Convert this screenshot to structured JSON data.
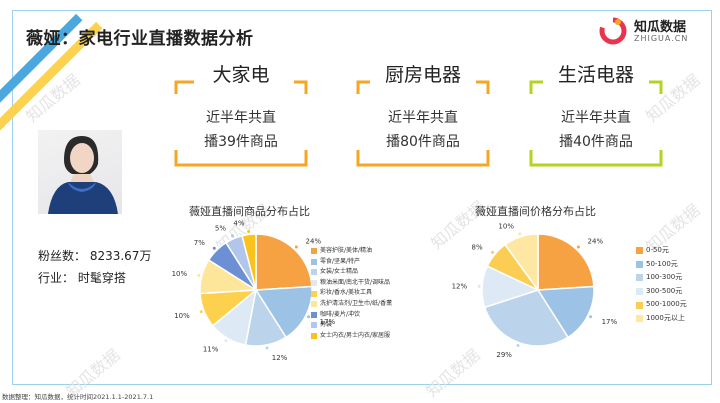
{
  "title": "薇娅：家电行业直播数据分析",
  "logo": {
    "name": "知瓜数据",
    "sub": "ZHIGUA.CN"
  },
  "categories": [
    {
      "name": "大家电",
      "desc_line1": "近半年共直",
      "desc_line2": "播39件商品"
    },
    {
      "name": "厨房电器",
      "desc_line1": "近半年共直",
      "desc_line2": "播80件商品"
    },
    {
      "name": "生活电器",
      "desc_line1": "近半年共直",
      "desc_line2": "播40件商品"
    }
  ],
  "profile": {
    "fans": "粉丝数：  8233.67万",
    "industry": "行业：  时髦穿搭"
  },
  "footer": "数据整理：知瓜数据，统计时间2021.1.1-2021.7.1",
  "watermark": "知瓜数据",
  "colors": {
    "accent": "#f5a623",
    "frame": "#9fd0ea"
  },
  "chart_data": [
    {
      "type": "pie",
      "title": "薇娅直播间商品分布占比",
      "labels": [
        "美容护肤/美体/精油",
        "零食/坚果/特产",
        "女装/女士精品",
        "粮油米面/南北干货/调味品",
        "彩妆/香水/美妆工具",
        "洗护清洁剂/卫生巾/纸/香薰",
        "咖啡/麦片/冲饮",
        "男装",
        "女士内衣/男士内衣/家居服"
      ],
      "values": [
        24,
        17,
        12,
        11,
        10,
        10,
        7,
        5,
        4
      ],
      "value_labels": [
        "24%",
        "17%",
        "12%",
        "11%",
        "10%",
        "10%",
        "7%",
        "5%",
        "4%"
      ],
      "colors": [
        "#f6a243",
        "#9cc2e5",
        "#bcd3ec",
        "#dde9f5",
        "#fdd14d",
        "#fde59a",
        "#6d8fd4",
        "#b1c6ea",
        "#f9c21d"
      ]
    },
    {
      "type": "pie",
      "title": "薇娅直播间价格分布占比",
      "labels": [
        "0-50元",
        "50-100元",
        "100-300元",
        "300-500元",
        "500-1000元",
        "1000元以上"
      ],
      "values": [
        24,
        17,
        29,
        12,
        8,
        10
      ],
      "value_labels": [
        "24%",
        "17%",
        "29%",
        "12%",
        "8%",
        "10%"
      ],
      "colors": [
        "#f6a243",
        "#9cc2e5",
        "#bcd3ec",
        "#dde9f5",
        "#fbcd52",
        "#fde7a3"
      ]
    }
  ]
}
